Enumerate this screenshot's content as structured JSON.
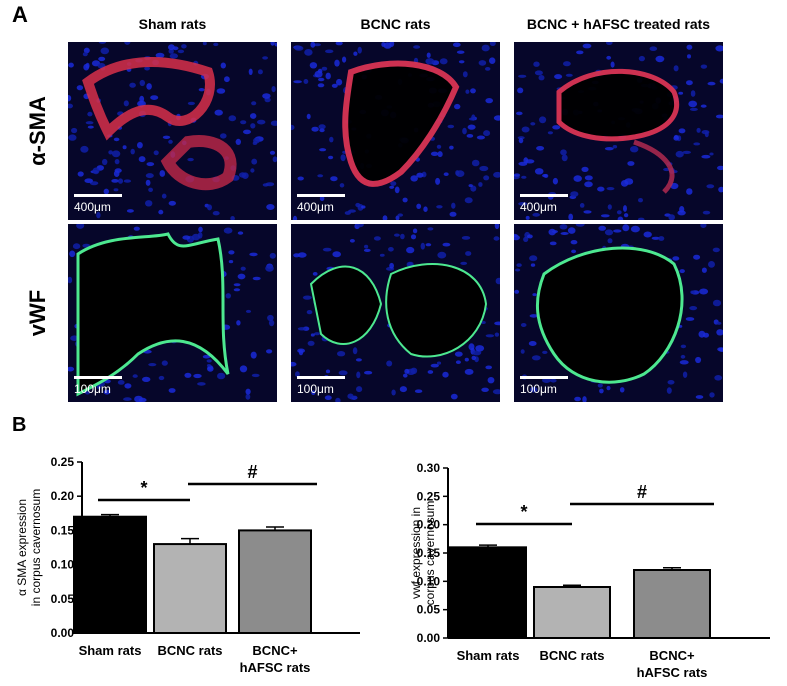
{
  "panel_a": {
    "letter": "A",
    "columns": [
      "Sham rats",
      "BCNC rats",
      "BCNC + hAFSC treated rats"
    ],
    "rows": [
      {
        "label": "α-SMA",
        "scale_text": "400μm",
        "stain": "α-SMA",
        "stain_color": "#e8324a"
      },
      {
        "label": "vWF",
        "scale_text": "100μm",
        "stain": "vWF",
        "stain_color": "#5cff9a"
      }
    ],
    "background_color": "#0a0a6e"
  },
  "panel_b": {
    "letter": "B"
  },
  "chart_data": [
    {
      "type": "bar",
      "categories": [
        "Sham rats",
        "BCNC rats",
        "BCNC+\nhAFSC rats"
      ],
      "values": [
        0.17,
        0.13,
        0.15
      ],
      "errors": [
        0.003,
        0.008,
        0.005
      ],
      "bar_colors": [
        "#000000",
        "#b3b3b3",
        "#8c8c8c"
      ],
      "ylabel": "α SMA expression\nin corpus cavernosum",
      "ylim": [
        0,
        0.25
      ],
      "yticks": [
        "0.00",
        "0.05",
        "0.10",
        "0.15",
        "0.20",
        "0.25"
      ],
      "annotations": [
        {
          "symbol": "*",
          "from": 0,
          "to": 1
        },
        {
          "symbol": "#",
          "from": 1,
          "to": 2
        }
      ]
    },
    {
      "type": "bar",
      "categories": [
        "Sham rats",
        "BCNC rats",
        "BCNC+\nhAFSC rats"
      ],
      "values": [
        0.16,
        0.09,
        0.12
      ],
      "errors": [
        0.004,
        0.003,
        0.004
      ],
      "bar_colors": [
        "#000000",
        "#b3b3b3",
        "#8c8c8c"
      ],
      "ylabel": "vwf expression in\ncorpus cavernosum",
      "ylim": [
        0,
        0.3
      ],
      "yticks": [
        "0.00",
        "0.05",
        "0.10",
        "0.15",
        "0.20",
        "0.25",
        "0.30"
      ],
      "annotations": [
        {
          "symbol": "*",
          "from": 0,
          "to": 1
        },
        {
          "symbol": "#",
          "from": 1,
          "to": 2
        }
      ]
    }
  ]
}
